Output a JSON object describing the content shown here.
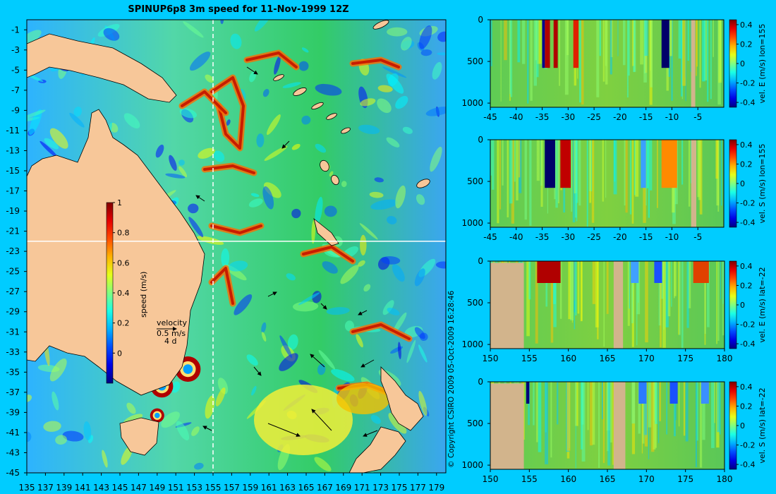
{
  "title": "SPINUP6p8 3m speed for 11-Nov-1999 12Z",
  "copyright": "© Copyright CSIRO 2009   05-Oct-2009 16:28:46",
  "colors": {
    "background": "#00ccff",
    "land": "#f7c799",
    "section_land": "#d2b48c",
    "section_line": "#ffffff",
    "vector": "#000000"
  },
  "chart_data": [
    {
      "type": "heatmap",
      "panel": "map",
      "xticks": [
        "135",
        "137",
        "139",
        "141",
        "143",
        "145",
        "147",
        "149",
        "151",
        "153",
        "155",
        "157",
        "159",
        "161",
        "163",
        "165",
        "167",
        "169",
        "171",
        "173",
        "175",
        "177",
        "179"
      ],
      "yticks": [
        "-1",
        "-3",
        "-5",
        "-7",
        "-9",
        "-11",
        "-13",
        "-15",
        "-17",
        "-19",
        "-21",
        "-23",
        "-25",
        "-27",
        "-29",
        "-31",
        "-33",
        "-35",
        "-37",
        "-39",
        "-41",
        "-43",
        "-45"
      ],
      "xlim": [
        135,
        180
      ],
      "ylim": [
        -45,
        0
      ],
      "section_lon": 155,
      "section_lat": -22,
      "colorbar": {
        "label": "speed (m/s)",
        "ticks": [
          "1",
          "0.8",
          "0.6",
          "0.4",
          "0.2",
          "0"
        ],
        "range": [
          -0.2,
          1
        ]
      },
      "vector_key": {
        "title": "velocity",
        "speed": "0.5 m/s",
        "duration": "4 d"
      },
      "eddies": [
        {
          "lon": 152.3,
          "lat": -34.7
        },
        {
          "lon": 149.5,
          "lat": -36.4
        },
        {
          "lon": 149.0,
          "lat": -39.3
        }
      ]
    },
    {
      "type": "heatmap",
      "panel": "section",
      "variable": "vel. E (m/s) lon=155",
      "xticks": [
        "-45",
        "-40",
        "-35",
        "-30",
        "-25",
        "-20",
        "-15",
        "-10",
        "-5"
      ],
      "yticks": [
        "0",
        "500",
        "1000"
      ],
      "xlim": [
        -45,
        0
      ],
      "ylim": [
        1050,
        0
      ],
      "cbar_ticks": [
        "0.4",
        "0.2",
        "0",
        "-0.2",
        "-0.4"
      ],
      "crange": [
        -0.45,
        0.45
      ]
    },
    {
      "type": "heatmap",
      "panel": "section",
      "variable": "vel. S (m/s) lon=155",
      "xticks": [
        "-45",
        "-40",
        "-35",
        "-30",
        "-25",
        "-20",
        "-15",
        "-10",
        "-5"
      ],
      "yticks": [
        "0",
        "500",
        "1000"
      ],
      "xlim": [
        -45,
        0
      ],
      "ylim": [
        1050,
        0
      ],
      "cbar_ticks": [
        "0.4",
        "0.2",
        "0",
        "-0.2",
        "-0.4"
      ],
      "crange": [
        -0.45,
        0.45
      ]
    },
    {
      "type": "heatmap",
      "panel": "section",
      "variable": "vel. E (m/s) lat=-22",
      "xticks": [
        "150",
        "155",
        "160",
        "165",
        "170",
        "175",
        "180"
      ],
      "yticks": [
        "0",
        "500",
        "1000"
      ],
      "xlim": [
        150,
        180
      ],
      "ylim": [
        1050,
        0
      ],
      "cbar_ticks": [
        "0.4",
        "0.2",
        "0",
        "-0.2",
        "-0.4"
      ],
      "crange": [
        -0.45,
        0.45
      ]
    },
    {
      "type": "heatmap",
      "panel": "section",
      "variable": "vel. S (m/s) lat=-22",
      "xticks": [
        "150",
        "155",
        "160",
        "165",
        "170",
        "175",
        "180"
      ],
      "yticks": [
        "0",
        "500",
        "1000"
      ],
      "xlim": [
        150,
        180
      ],
      "ylim": [
        1050,
        0
      ],
      "cbar_ticks": [
        "0.4",
        "0.2",
        "0",
        "-0.2",
        "-0.4"
      ],
      "crange": [
        -0.45,
        0.45
      ]
    }
  ]
}
